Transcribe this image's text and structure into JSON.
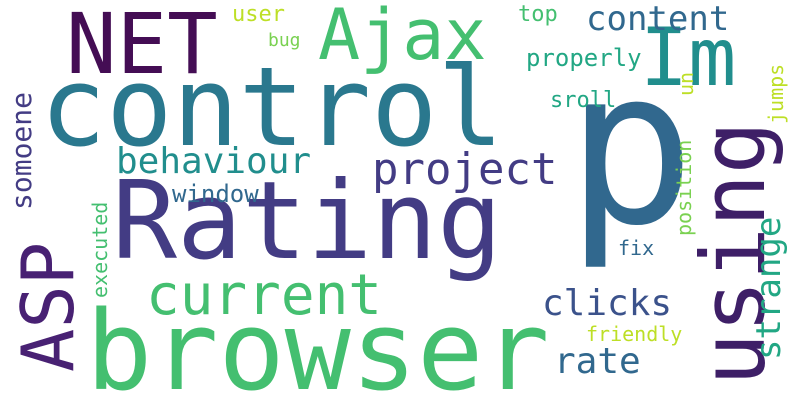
{
  "words": {
    "p": "p",
    "control": "control",
    "rating": "Rating",
    "browser": "browser",
    "using": "using",
    "net": "NET",
    "ajax": "Ajax",
    "im": "Im",
    "asp": "ASP",
    "current": "current",
    "project": "project",
    "behaviour": "behaviour",
    "content": "content",
    "strange": "strange",
    "clicks": "clicks",
    "rate": "rate",
    "somoene": "somoene",
    "properly": "properly",
    "window": "window",
    "sroll": "sroll",
    "top": "top",
    "user": "user",
    "bug": "bug",
    "jumps": "jumps",
    "un": "un",
    "position": "position",
    "executed": "executed",
    "fix": "fix",
    "friendly": "friendly"
  }
}
